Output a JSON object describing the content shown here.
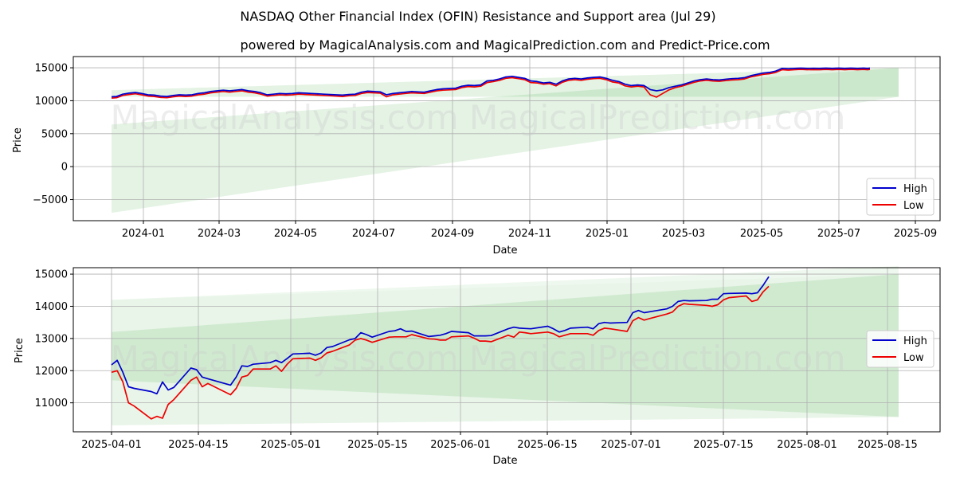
{
  "figure": {
    "title": "NASDAQ Other Financial Index (OFIN) Resistance and Support area (Jul 29)",
    "subtitle": "powered by MagicalAnalysis.com and MagicalPrediction.com and Predict-Price.com",
    "watermark": "MagicalAnalysis.com    MagicalPrediction.com"
  },
  "colors": {
    "high": "#0000cc",
    "low": "#ee0000",
    "band": "#2ca02c",
    "grid": "#b0b0b0"
  },
  "chart_data": [
    {
      "type": "line",
      "xlabel": "Date",
      "ylabel": "Price",
      "x_ticks": [
        "2024-01",
        "2024-03",
        "2024-05",
        "2024-07",
        "2024-09",
        "2024-11",
        "2025-01",
        "2025-03",
        "2025-05",
        "2025-07",
        "2025-09"
      ],
      "y_ticks": [
        "−5000",
        "0",
        "5000",
        "10000",
        "15000"
      ],
      "y_tick_values": [
        -5000,
        0,
        5000,
        10000,
        15000
      ],
      "ylim": [
        -8200,
        16700
      ],
      "legend": {
        "placement": "lower-right",
        "entries": [
          "High",
          "Low"
        ]
      },
      "series": [
        {
          "name": "High",
          "x": [
            -24,
            -20,
            -15,
            -10,
            -5,
            0,
            5,
            10,
            15,
            20,
            25,
            30,
            35,
            40,
            45,
            50,
            55,
            60,
            65,
            70,
            75,
            80,
            85,
            90,
            95,
            100,
            105,
            110,
            115,
            120,
            125,
            130,
            135,
            140,
            145,
            150,
            155,
            160,
            165,
            170,
            175,
            180,
            185,
            190,
            195,
            200,
            205,
            210,
            215,
            220,
            225,
            230,
            235,
            240,
            245,
            250,
            255,
            260,
            265,
            270,
            275,
            280,
            285,
            290,
            295,
            300,
            305,
            310,
            315,
            320,
            325,
            330,
            335,
            340,
            345,
            350,
            355,
            360,
            365,
            370,
            375,
            380,
            385,
            390,
            395,
            400,
            405,
            410,
            415,
            420,
            425,
            430,
            435,
            440,
            445,
            450,
            455,
            460,
            465,
            470,
            475,
            480,
            485,
            490,
            495,
            500,
            505,
            510,
            515,
            520,
            525,
            530,
            535,
            540,
            545,
            550,
            555,
            560,
            565,
            570,
            575,
            578,
            580
          ],
          "values": [
            10600,
            10650,
            11000,
            11150,
            11250,
            11100,
            10900,
            10850,
            10700,
            10650,
            10800,
            10900,
            10850,
            10900,
            11100,
            11200,
            11400,
            11500,
            11600,
            11500,
            11600,
            11700,
            11500,
            11400,
            11200,
            10900,
            11000,
            11100,
            11050,
            11100,
            11200,
            11150,
            11100,
            11050,
            11000,
            10950,
            10900,
            10850,
            10950,
            11000,
            11300,
            11450,
            11400,
            11350,
            10900,
            11100,
            11200,
            11300,
            11400,
            11350,
            11300,
            11500,
            11700,
            11800,
            11850,
            11900,
            12200,
            12350,
            12300,
            12400,
            13000,
            13100,
            13300,
            13600,
            13700,
            13550,
            13400,
            13000,
            12900,
            12700,
            12800,
            12500,
            13000,
            13300,
            13400,
            13300,
            13450,
            13550,
            13600,
            13400,
            13100,
            12900,
            12500,
            12300,
            12400,
            12300,
            11700,
            11500,
            11650,
            12000,
            12200,
            12400,
            12700,
            13000,
            13200,
            13300,
            13200,
            13150,
            13250,
            13350,
            13400,
            13500,
            13800,
            14000,
            14200,
            14300,
            14500,
            14900,
            14850,
            14900,
            14950,
            14900,
            14920,
            14900,
            14950,
            14900,
            14950,
            14900,
            14950,
            14900,
            14950,
            14900,
            14950
          ]
        },
        {
          "name": "Low",
          "x": [
            -24,
            -20,
            -15,
            -10,
            -5,
            0,
            5,
            10,
            15,
            20,
            25,
            30,
            35,
            40,
            45,
            50,
            55,
            60,
            65,
            70,
            75,
            80,
            85,
            90,
            95,
            100,
            105,
            110,
            115,
            120,
            125,
            130,
            135,
            140,
            145,
            150,
            155,
            160,
            165,
            170,
            175,
            180,
            185,
            190,
            195,
            200,
            205,
            210,
            215,
            220,
            225,
            230,
            235,
            240,
            245,
            250,
            255,
            260,
            265,
            270,
            275,
            280,
            285,
            290,
            295,
            300,
            305,
            310,
            315,
            320,
            325,
            330,
            335,
            340,
            345,
            350,
            355,
            360,
            365,
            370,
            375,
            380,
            385,
            390,
            395,
            400,
            405,
            410,
            415,
            420,
            425,
            430,
            435,
            440,
            445,
            450,
            455,
            460,
            465,
            470,
            475,
            480,
            485,
            490,
            495,
            500,
            505,
            510,
            515,
            520,
            525,
            530,
            535,
            540,
            545,
            550,
            555,
            560,
            565,
            570,
            575,
            578,
            580
          ],
          "values": [
            10400,
            10450,
            10800,
            10950,
            11050,
            10900,
            10700,
            10650,
            10500,
            10450,
            10600,
            10700,
            10650,
            10700,
            10900,
            11000,
            11200,
            11300,
            11400,
            11300,
            11400,
            11500,
            11300,
            11200,
            11000,
            10700,
            10800,
            10900,
            10850,
            10900,
            11000,
            10950,
            10900,
            10850,
            10800,
            10750,
            10700,
            10650,
            10750,
            10800,
            11100,
            11250,
            11200,
            11150,
            10600,
            10900,
            11000,
            11100,
            11200,
            11150,
            11100,
            11300,
            11500,
            11600,
            11650,
            11700,
            12000,
            12150,
            12100,
            12200,
            12750,
            12900,
            13100,
            13400,
            13500,
            13350,
            13200,
            12750,
            12700,
            12500,
            12600,
            12250,
            12800,
            13100,
            13200,
            13100,
            13250,
            13350,
            13400,
            13200,
            12850,
            12700,
            12250,
            12100,
            12200,
            12100,
            10900,
            10550,
            11100,
            11650,
            12000,
            12200,
            12500,
            12800,
            13000,
            13100,
            13000,
            12950,
            13050,
            13150,
            13200,
            13300,
            13600,
            13800,
            14000,
            14100,
            14300,
            14700,
            14650,
            14700,
            14750,
            14700,
            14720,
            14700,
            14750,
            14700,
            14750,
            14700,
            14750,
            14700,
            14750,
            14700,
            14750
          ]
        }
      ]
    },
    {
      "type": "line",
      "xlabel": "Date",
      "ylabel": "Price",
      "x_ticks": [
        "2025-04-01",
        "2025-04-15",
        "2025-05-01",
        "2025-05-15",
        "2025-06-01",
        "2025-06-15",
        "2025-07-01",
        "2025-07-15",
        "2025-08-01",
        "2025-08-15"
      ],
      "y_ticks": [
        "11000",
        "12000",
        "13000",
        "14000",
        "15000"
      ],
      "y_tick_values": [
        11000,
        12000,
        13000,
        14000,
        15000
      ],
      "ylim": [
        10100,
        15200
      ],
      "legend": {
        "placement": "center-right",
        "entries": [
          "High",
          "Low"
        ]
      },
      "series": [
        {
          "name": "High",
          "x": [
            0,
            1,
            2,
            3,
            4,
            7,
            8,
            9,
            10,
            11,
            14,
            15,
            16,
            17,
            21,
            22,
            23,
            24,
            25,
            28,
            29,
            30,
            31,
            32,
            35,
            36,
            37,
            38,
            39,
            42,
            43,
            44,
            45,
            46,
            49,
            50,
            51,
            52,
            53,
            56,
            57,
            58,
            59,
            60,
            63,
            64,
            65,
            66,
            67,
            70,
            71,
            72,
            73,
            74,
            77,
            78,
            79,
            80,
            81,
            84,
            85,
            86,
            87,
            88,
            91,
            92,
            93,
            94,
            95,
            98,
            99,
            100,
            101,
            102,
            105,
            106,
            107,
            108,
            109,
            112,
            113,
            114,
            115,
            116
          ],
          "values": [
            12180,
            12320,
            11950,
            11500,
            11450,
            11350,
            11280,
            11650,
            11400,
            11480,
            12080,
            12030,
            11800,
            11750,
            11550,
            11800,
            12150,
            12130,
            12200,
            12250,
            12320,
            12250,
            12380,
            12520,
            12540,
            12480,
            12550,
            12720,
            12750,
            12960,
            13000,
            13180,
            13120,
            13040,
            13220,
            13240,
            13300,
            13220,
            13230,
            13060,
            13080,
            13100,
            13150,
            13220,
            13180,
            13080,
            13080,
            13080,
            13090,
            13300,
            13350,
            13320,
            13310,
            13300,
            13380,
            13300,
            13200,
            13250,
            13320,
            13350,
            13300,
            13460,
            13500,
            13480,
            13500,
            13800,
            13870,
            13800,
            13830,
            13920,
            14000,
            14150,
            14180,
            14170,
            14180,
            14220,
            14220,
            14390,
            14400,
            14410,
            14390,
            14420,
            14650,
            14920
          ]
        },
        {
          "name": "Low",
          "x": [
            0,
            1,
            2,
            3,
            4,
            7,
            8,
            9,
            10,
            11,
            14,
            15,
            16,
            17,
            21,
            22,
            23,
            24,
            25,
            28,
            29,
            30,
            31,
            32,
            35,
            36,
            37,
            38,
            39,
            42,
            43,
            44,
            45,
            46,
            49,
            50,
            51,
            52,
            53,
            56,
            57,
            58,
            59,
            60,
            63,
            64,
            65,
            66,
            67,
            70,
            71,
            72,
            73,
            74,
            77,
            78,
            79,
            80,
            81,
            84,
            85,
            86,
            87,
            88,
            91,
            92,
            93,
            94,
            95,
            98,
            99,
            100,
            101,
            102,
            105,
            106,
            107,
            108,
            109,
            112,
            113,
            114,
            115,
            116
          ],
          "values": [
            11950,
            12000,
            11650,
            11000,
            10900,
            10500,
            10580,
            10520,
            10950,
            11100,
            11700,
            11800,
            11500,
            11600,
            11250,
            11450,
            11800,
            11850,
            12050,
            12050,
            12150,
            11980,
            12200,
            12370,
            12390,
            12320,
            12400,
            12550,
            12600,
            12800,
            12950,
            13000,
            12950,
            12880,
            13040,
            13050,
            13050,
            13050,
            13120,
            12990,
            12980,
            12950,
            12950,
            13050,
            13080,
            13010,
            12920,
            12920,
            12900,
            13100,
            13040,
            13200,
            13180,
            13150,
            13200,
            13150,
            13050,
            13100,
            13150,
            13150,
            13100,
            13250,
            13320,
            13300,
            13220,
            13550,
            13650,
            13570,
            13620,
            13760,
            13820,
            14000,
            14080,
            14060,
            14030,
            14000,
            14050,
            14200,
            14270,
            14320,
            14150,
            14200,
            14450,
            14620
          ]
        }
      ]
    }
  ]
}
